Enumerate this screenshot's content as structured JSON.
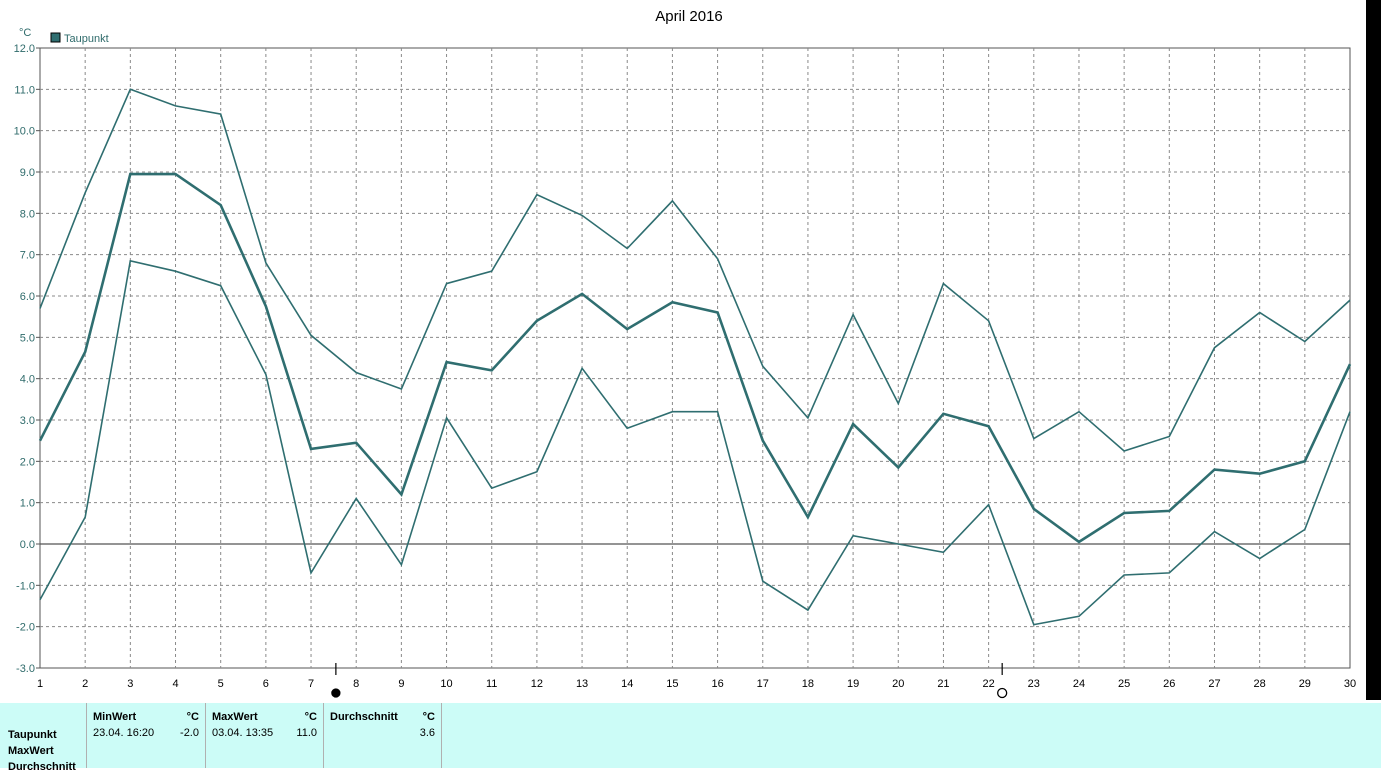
{
  "chart_data": {
    "type": "line",
    "title": "April 2016",
    "ylabel": "°C",
    "legend": {
      "label": "Taupunkt",
      "color": "#2f6e70",
      "placement": "top-left"
    },
    "ylim": [
      -3.0,
      12.0
    ],
    "yticks": [
      "-3.0",
      "-2.0",
      "-1.0",
      "0.0",
      "1.0",
      "2.0",
      "3.0",
      "4.0",
      "5.0",
      "6.0",
      "7.0",
      "8.0",
      "9.0",
      "10.0",
      "11.0",
      "12.0"
    ],
    "x": [
      1,
      2,
      3,
      4,
      5,
      6,
      7,
      8,
      9,
      10,
      11,
      12,
      13,
      14,
      15,
      16,
      17,
      18,
      19,
      20,
      21,
      22,
      23,
      24,
      25,
      26,
      27,
      28,
      29,
      30
    ],
    "grid": true,
    "series": [
      {
        "values": [
          5.7,
          8.5,
          11.0,
          10.6,
          10.4,
          6.8,
          5.05,
          4.15,
          3.75,
          6.3,
          6.6,
          8.45,
          7.95,
          7.15,
          8.3,
          6.9,
          4.3,
          3.05,
          5.55,
          3.4,
          6.3,
          5.4,
          2.55,
          3.2,
          2.25,
          2.6,
          4.75,
          5.6,
          4.9,
          5.9
        ]
      },
      {
        "values": [
          2.5,
          4.65,
          8.95,
          8.95,
          8.2,
          5.75,
          2.3,
          2.45,
          1.2,
          4.4,
          4.2,
          5.4,
          6.05,
          5.2,
          5.85,
          5.6,
          2.5,
          0.65,
          2.9,
          1.85,
          3.15,
          2.85,
          0.85,
          0.05,
          0.75,
          0.8,
          1.8,
          1.7,
          2.0,
          4.35
        ]
      },
      {
        "values": [
          -1.35,
          0.65,
          6.85,
          6.6,
          6.25,
          4.1,
          -0.7,
          1.1,
          -0.5,
          3.05,
          1.35,
          1.75,
          4.25,
          2.8,
          3.2,
          3.2,
          -0.9,
          -1.6,
          0.2,
          0.0,
          -0.2,
          0.95,
          -1.95,
          -1.75,
          -0.75,
          -0.7,
          0.3,
          -0.35,
          0.35,
          3.2
        ]
      }
    ],
    "moon_phases": [
      {
        "day": 7.55,
        "phase": "new-moon"
      },
      {
        "day": 22.3,
        "phase": "full-moon"
      }
    ]
  },
  "stats": {
    "row_labels": [
      "Taupunkt",
      "MaxWert",
      "Durchschnitt"
    ],
    "columns": [
      {
        "header": "MinWert",
        "unit": "°C",
        "time": "23.04.  16:20",
        "value": "-2.0"
      },
      {
        "header": "MaxWert",
        "unit": "°C",
        "time": "03.04.  13:35",
        "value": "11.0"
      },
      {
        "header": "Durchschnitt",
        "unit": "°C",
        "time": "",
        "value": "3.6"
      }
    ]
  }
}
